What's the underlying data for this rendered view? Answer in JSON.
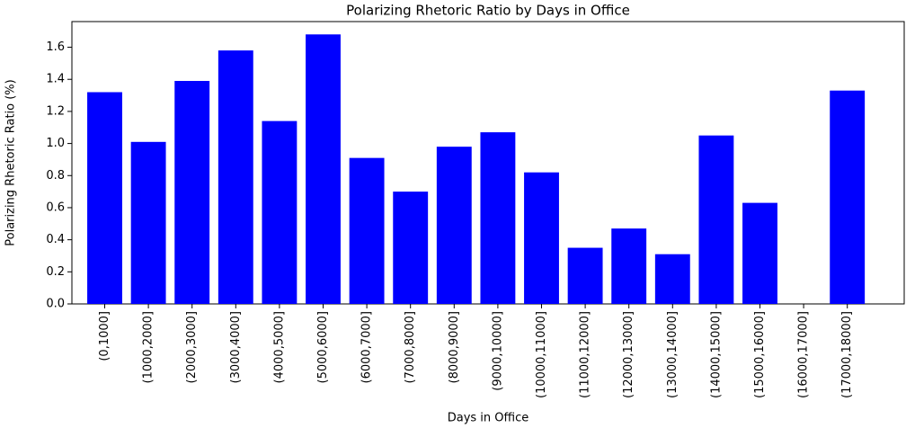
{
  "chart_data": {
    "type": "bar",
    "title": "Polarizing Rhetoric Ratio by Days in Office",
    "x_label": "Days in Office",
    "y_label": "Polarizing Rhetoric Ratio (%)",
    "categories": [
      "(0,1000]",
      "(1000,2000]",
      "(2000,3000]",
      "(3000,4000]",
      "(4000,5000]",
      "(5000,6000]",
      "(6000,7000]",
      "(7000,8000]",
      "(8000,9000]",
      "(9000,10000]",
      "(10000,11000]",
      "(11000,12000]",
      "(12000,13000]",
      "(13000,14000]",
      "(14000,15000]",
      "(15000,16000]",
      "(16000,17000]",
      "(17000,18000]"
    ],
    "values": [
      1.32,
      1.01,
      1.39,
      1.58,
      1.14,
      1.68,
      0.91,
      0.7,
      0.98,
      1.07,
      0.82,
      0.35,
      0.47,
      0.31,
      1.05,
      0.63,
      0,
      1.33
    ],
    "color": "#0000ff",
    "ylim": [
      0,
      1.76
    ],
    "yticks": [
      {
        "value": 0,
        "label": "0.0"
      },
      0.2,
      0.4,
      0.6,
      0.8,
      {
        "value": 1,
        "label": "1.0"
      },
      1.2,
      1.4,
      1.6
    ]
  }
}
